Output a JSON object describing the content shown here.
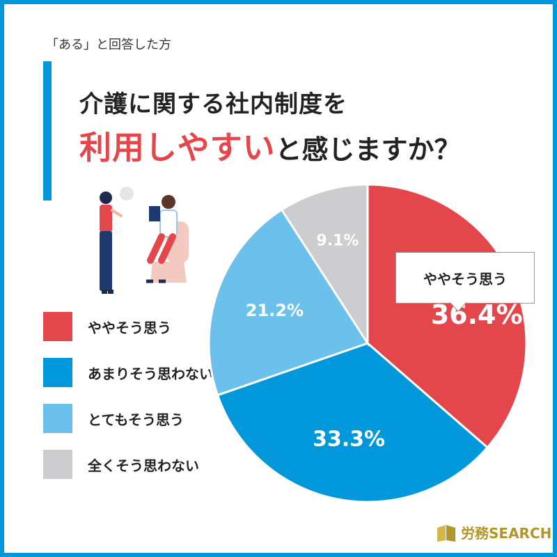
{
  "subtitle": "「ある」と回答した方",
  "title": {
    "line1": "介護に関する社内制度を",
    "line2_highlight": "利用しやすい",
    "line2_rest": "と感じますか？"
  },
  "callout_label": "ややそう思う",
  "logo": {
    "text": "労務SEARCH",
    "color": "#b3962b"
  },
  "colors": {
    "frame": "#0097db",
    "title_highlight": "#e4474b"
  },
  "chart_data": {
    "type": "pie",
    "categories": [
      "ややそう思う",
      "あまりそう思わない",
      "とてもそう思う",
      "全くそう思わない"
    ],
    "values": [
      36.4,
      33.3,
      21.2,
      9.1
    ],
    "value_labels": [
      "36.4%",
      "33.3%",
      "21.2%",
      "9.1%"
    ],
    "colors": [
      "#e4474b",
      "#0097db",
      "#6bc1ec",
      "#cdcdd0"
    ],
    "start_angle_deg": 0,
    "direction": "clockwise",
    "legend_position": "left"
  }
}
